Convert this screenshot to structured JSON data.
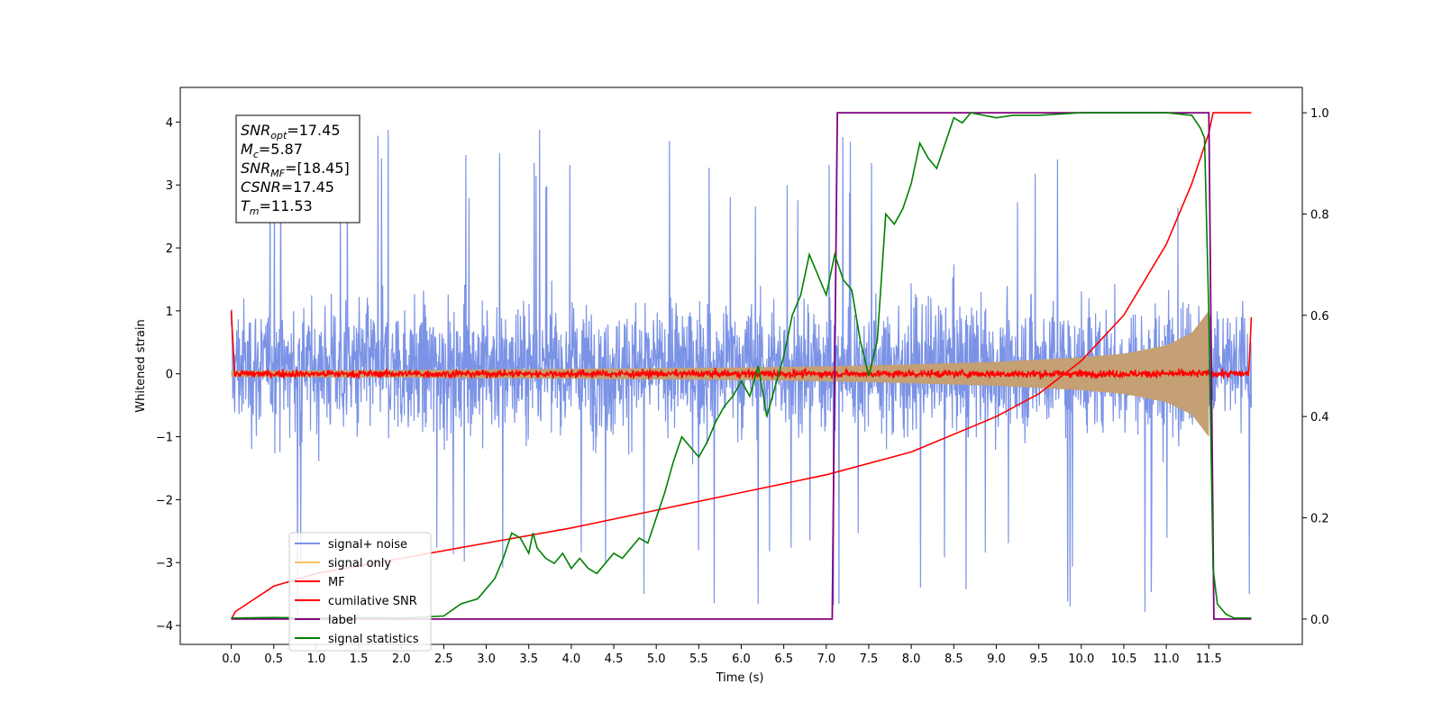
{
  "chart_data": {
    "type": "line",
    "xlabel": "Time (s)",
    "ylabel": "Whitened strain",
    "xlim": [
      -0.6,
      12.6
    ],
    "ylim": [
      -4.3,
      4.55
    ],
    "y2lim": [
      -0.05,
      1.05
    ],
    "x_ticks": [
      "0.0",
      "0.5",
      "1.0",
      "1.5",
      "2.0",
      "2.5",
      "3.0",
      "3.5",
      "4.0",
      "4.5",
      "5.0",
      "5.5",
      "6.0",
      "6.5",
      "7.0",
      "7.5",
      "8.0",
      "8.5",
      "9.0",
      "9.5",
      "10.0",
      "10.5",
      "11.0",
      "11.5"
    ],
    "y_ticks": [
      "4",
      "3",
      "2",
      "1",
      "0",
      "−1",
      "−2",
      "−3",
      "−4"
    ],
    "y2_ticks": [
      "1.0",
      "0.8",
      "0.6",
      "0.4",
      "0.2",
      "0.0"
    ],
    "annotation": {
      "lines": [
        {
          "base": "SNR",
          "sub": "opt",
          "rest": "=17.45"
        },
        {
          "base": "M",
          "sub": "c",
          "rest": "=5.87"
        },
        {
          "base": "SNR",
          "sub": "MF",
          "rest": "=[18.45]"
        },
        {
          "base": "CSNR",
          "sub": "",
          "rest": "=17.45"
        },
        {
          "base": "T",
          "sub": "m",
          "rest": "=11.53"
        }
      ]
    },
    "legend": {
      "location": "lower-left",
      "entries": [
        {
          "label": "signal+ noise",
          "color": "#7b93e6"
        },
        {
          "label": "signal only",
          "color": "#ffc060"
        },
        {
          "label": "MF",
          "color": "#ff0000"
        },
        {
          "label": "cumilative SNR",
          "color": "#ff0000"
        },
        {
          "label": "label",
          "color": "#800080"
        },
        {
          "label": "signal statistics",
          "color": "#008000"
        }
      ]
    },
    "series": [
      {
        "name": "signal+ noise",
        "axis": "left",
        "color": "#7b93e6",
        "description": "noise band",
        "x_range": [
          0.0,
          12.0
        ],
        "typical_range": [
          -1.8,
          2.4
        ],
        "extreme_range": [
          -3.9,
          4.1
        ]
      },
      {
        "name": "signal only",
        "axis": "left",
        "color": "#c4a074",
        "x_range": [
          0.0,
          11.5
        ],
        "amplitude": {
          "x": [
            0.0,
            2.0,
            4.0,
            6.0,
            7.0,
            8.0,
            9.0,
            10.0,
            10.5,
            11.0,
            11.3,
            11.5
          ],
          "y": [
            0.05,
            0.06,
            0.08,
            0.1,
            0.12,
            0.15,
            0.19,
            0.26,
            0.32,
            0.45,
            0.65,
            1.0
          ]
        }
      },
      {
        "name": "MF",
        "axis": "left",
        "color": "#ff0000",
        "x_range": [
          0.0,
          12.0
        ],
        "start_value": 1.0,
        "level": 0.0,
        "noise": 0.05,
        "end_value": 0.9
      },
      {
        "name": "cumilative SNR",
        "axis": "right",
        "color": "#ff0000",
        "x": [
          0.0,
          0.05,
          0.5,
          1.0,
          2.0,
          3.0,
          4.0,
          5.0,
          6.0,
          7.0,
          8.0,
          9.0,
          9.5,
          10.0,
          10.5,
          11.0,
          11.3,
          11.5,
          11.55,
          12.0
        ],
        "y": [
          0.0,
          0.015,
          0.065,
          0.09,
          0.12,
          0.15,
          0.18,
          0.215,
          0.25,
          0.285,
          0.33,
          0.4,
          0.445,
          0.51,
          0.6,
          0.74,
          0.86,
          0.96,
          1.0,
          1.0
        ]
      },
      {
        "name": "label",
        "axis": "right",
        "color": "#800080",
        "x": [
          0.0,
          7.07,
          7.13,
          11.5,
          11.56,
          12.0
        ],
        "y": [
          0.0,
          0.0,
          1.0,
          1.0,
          0.0,
          0.0
        ]
      },
      {
        "name": "signal statistics",
        "axis": "right",
        "color": "#008000",
        "x": [
          0.0,
          0.5,
          1.0,
          1.5,
          2.0,
          2.5,
          2.7,
          2.9,
          3.0,
          3.1,
          3.2,
          3.3,
          3.4,
          3.5,
          3.55,
          3.6,
          3.7,
          3.8,
          3.9,
          4.0,
          4.1,
          4.2,
          4.3,
          4.4,
          4.5,
          4.6,
          4.7,
          4.8,
          4.9,
          5.0,
          5.1,
          5.2,
          5.3,
          5.4,
          5.5,
          5.6,
          5.7,
          5.8,
          5.9,
          6.0,
          6.1,
          6.2,
          6.3,
          6.4,
          6.5,
          6.6,
          6.7,
          6.8,
          6.9,
          7.0,
          7.1,
          7.2,
          7.3,
          7.4,
          7.5,
          7.6,
          7.7,
          7.8,
          7.9,
          8.0,
          8.1,
          8.2,
          8.3,
          8.5,
          8.6,
          8.7,
          9.0,
          9.2,
          9.5,
          10.0,
          10.5,
          11.0,
          11.3,
          11.4,
          11.45,
          11.5,
          11.55,
          11.6,
          11.7,
          11.8,
          11.9,
          12.0
        ],
        "y": [
          0.002,
          0.003,
          0.002,
          0.003,
          0.002,
          0.006,
          0.03,
          0.04,
          0.06,
          0.08,
          0.12,
          0.17,
          0.16,
          0.13,
          0.17,
          0.14,
          0.12,
          0.11,
          0.13,
          0.1,
          0.12,
          0.1,
          0.09,
          0.11,
          0.13,
          0.12,
          0.14,
          0.16,
          0.15,
          0.2,
          0.25,
          0.31,
          0.36,
          0.34,
          0.32,
          0.35,
          0.39,
          0.42,
          0.44,
          0.47,
          0.44,
          0.5,
          0.4,
          0.46,
          0.52,
          0.6,
          0.64,
          0.72,
          0.68,
          0.64,
          0.72,
          0.67,
          0.65,
          0.55,
          0.48,
          0.55,
          0.8,
          0.78,
          0.81,
          0.86,
          0.94,
          0.91,
          0.89,
          0.99,
          0.98,
          1.0,
          0.99,
          0.995,
          0.995,
          1.0,
          1.0,
          1.0,
          0.995,
          0.97,
          0.95,
          0.6,
          0.1,
          0.03,
          0.01,
          0.002,
          0.002,
          0.002
        ]
      }
    ]
  }
}
